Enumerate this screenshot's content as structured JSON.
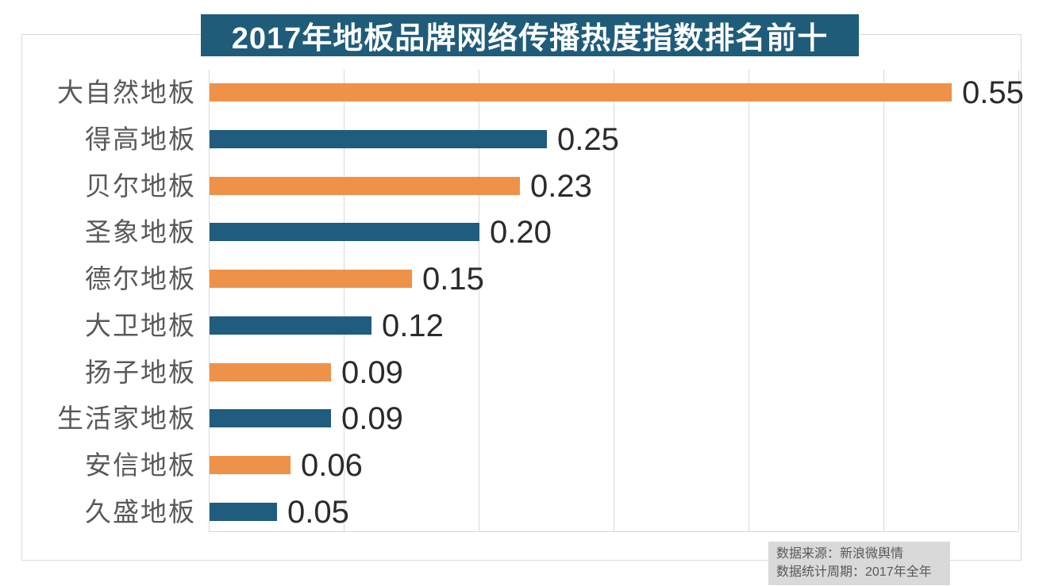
{
  "title": "2017年地板品牌网络传播热度指数排名前十",
  "source": {
    "line1": "数据来源：新浪微舆情",
    "line2": "数据统计周期：2017年全年"
  },
  "colors": {
    "title_bg": "#1f5c7a",
    "title_text": "#ffffff",
    "bar_orange": "#ef9249",
    "bar_teal": "#1f5c7d",
    "gridline": "#d9d9d9",
    "chart_border": "#d9d9d9",
    "category_text": "#595959",
    "value_text": "#2b2b2b",
    "source_bg": "#d9d9d9",
    "source_text": "#595959"
  },
  "chart_data": {
    "type": "bar",
    "orientation": "horizontal",
    "title": "2017年地板品牌网络传播热度指数排名前十",
    "categories": [
      "大自然地板",
      "得高地板",
      "贝尔地板",
      "圣象地板",
      "德尔地板",
      "大卫地板",
      "扬子地板",
      "生活家地板",
      "安信地板",
      "久盛地板"
    ],
    "values": [
      0.55,
      0.25,
      0.23,
      0.2,
      0.15,
      0.12,
      0.09,
      0.09,
      0.06,
      0.05
    ],
    "value_labels": [
      "0.55",
      "0.25",
      "0.23",
      "0.20",
      "0.15",
      "0.12",
      "0.09",
      "0.09",
      "0.06",
      "0.05"
    ],
    "bar_colors": [
      "#ef9249",
      "#1f5c7d",
      "#ef9249",
      "#1f5c7d",
      "#ef9249",
      "#1f5c7d",
      "#ef9249",
      "#1f5c7d",
      "#ef9249",
      "#1f5c7d"
    ],
    "xlabel": "",
    "ylabel": "",
    "xlim": [
      0,
      0.6
    ],
    "grid_interval": 0.1,
    "grid": true,
    "legend": false,
    "source_note": [
      "数据来源：新浪微舆情",
      "数据统计周期：2017年全年"
    ]
  }
}
